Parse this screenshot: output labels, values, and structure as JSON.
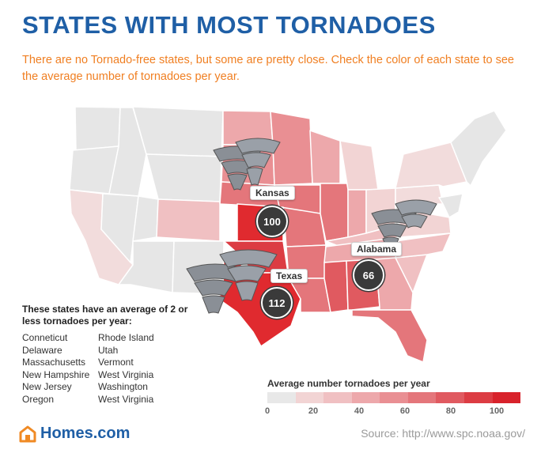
{
  "title": "STATES WITH MOST TORNADOES",
  "subtitle": "There are no Tornado-free states, but some are pretty close. Check the color of each state to see the average number of tornadoes per year.",
  "callouts": {
    "kansas": {
      "label": "Kansas",
      "value": "100"
    },
    "alabama": {
      "label": "Alabama",
      "value": "66"
    },
    "texas": {
      "label": "Texas",
      "value": "112"
    }
  },
  "low_states": {
    "title": "These states have an average of 2 or less tornadoes per year:",
    "col1": [
      "Conneticut",
      "Delaware",
      "Massachusetts",
      "New Hampshire",
      "New Jersey",
      "Oregon"
    ],
    "col2": [
      "Rhode Island",
      "Utah",
      "Vermont",
      "West Virginia",
      "Washington",
      "West Virginia"
    ]
  },
  "legend": {
    "title": "Average number tornadoes per year",
    "ticks": [
      "0",
      "20",
      "40",
      "60",
      "80",
      "100"
    ],
    "colors": [
      "#e8e8e8",
      "#f2d4d4",
      "#f0c0c2",
      "#eda8ab",
      "#e98f93",
      "#e4767b",
      "#e05a60",
      "#dc3c43",
      "#d8222b"
    ]
  },
  "logo": {
    "text": "Homes.com",
    "color": "#f08a24"
  },
  "source": "Source: http://www.spc.noaa.gov/",
  "colors": {
    "title": "#1f5fa6",
    "subtitle": "#f07f22",
    "max_red": "#e02a2f"
  }
}
